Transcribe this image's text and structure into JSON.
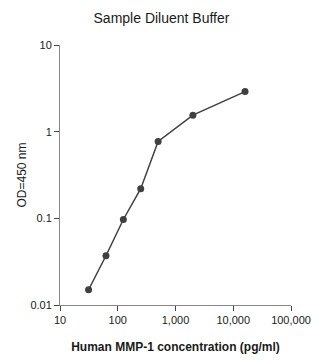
{
  "chart_data": {
    "type": "line",
    "title": "Sample Diluent Buffer",
    "x_label": "Human MMP-1 concentration (pg/ml)",
    "y_label": "OD=450 nm",
    "x": [
      31.25,
      62.5,
      125,
      250,
      500,
      2000,
      16000
    ],
    "values": [
      0.015,
      0.037,
      0.097,
      0.22,
      0.77,
      1.55,
      2.9
    ],
    "color": "#404040",
    "marker": "circle",
    "log": true,
    "grid": false,
    "xlim": [
      10,
      100000
    ],
    "ylim": [
      0.01,
      10
    ],
    "xticks": [
      10,
      100,
      {
        "value": 1000,
        "label": "1,000"
      },
      {
        "value": 10000,
        "label": "10,000"
      },
      {
        "value": 100000,
        "label": "100,000"
      }
    ],
    "yticks": [
      0.01,
      0.1,
      1,
      10
    ]
  }
}
